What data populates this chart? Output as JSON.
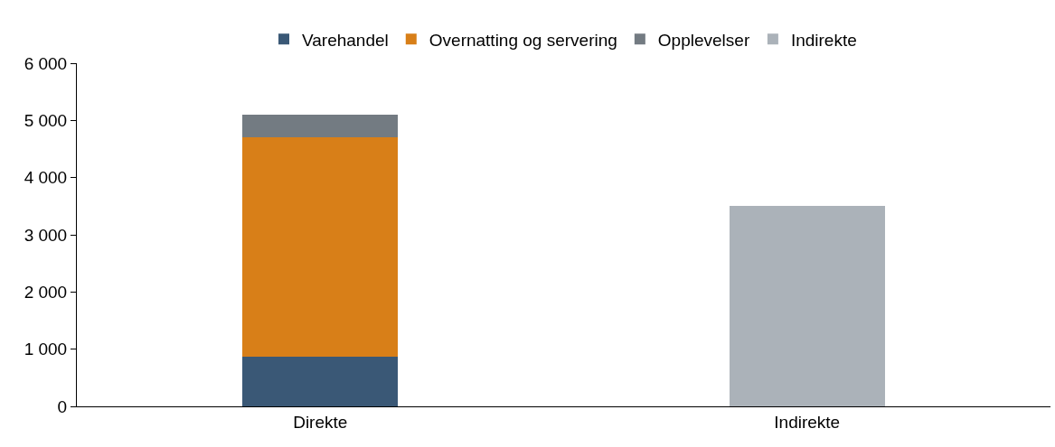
{
  "chart_data": {
    "type": "bar",
    "stacked": true,
    "categories": [
      "Direkte",
      "Indirekte"
    ],
    "series": [
      {
        "name": "Varehandel",
        "color": "#3a5876",
        "values": [
          870,
          null
        ]
      },
      {
        "name": "Overnatting og servering",
        "color": "#d87f18",
        "values": [
          3830,
          null
        ]
      },
      {
        "name": "Opplevelser",
        "color": "#737b82",
        "values": [
          400,
          null
        ]
      },
      {
        "name": "Indirekte",
        "color": "#abb2b9",
        "values": [
          null,
          3500
        ]
      }
    ],
    "ylim": [
      0,
      6000
    ],
    "yticks": [
      0,
      {
        "value": 1000,
        "label": "1 000"
      },
      {
        "value": 2000,
        "label": "2 000"
      },
      {
        "value": 3000,
        "label": "3 000"
      },
      {
        "value": 4000,
        "label": "4 000"
      },
      {
        "value": 5000,
        "label": "5 000"
      },
      {
        "value": 6000,
        "label": "6 000"
      }
    ],
    "grid": false,
    "legend": "top"
  }
}
